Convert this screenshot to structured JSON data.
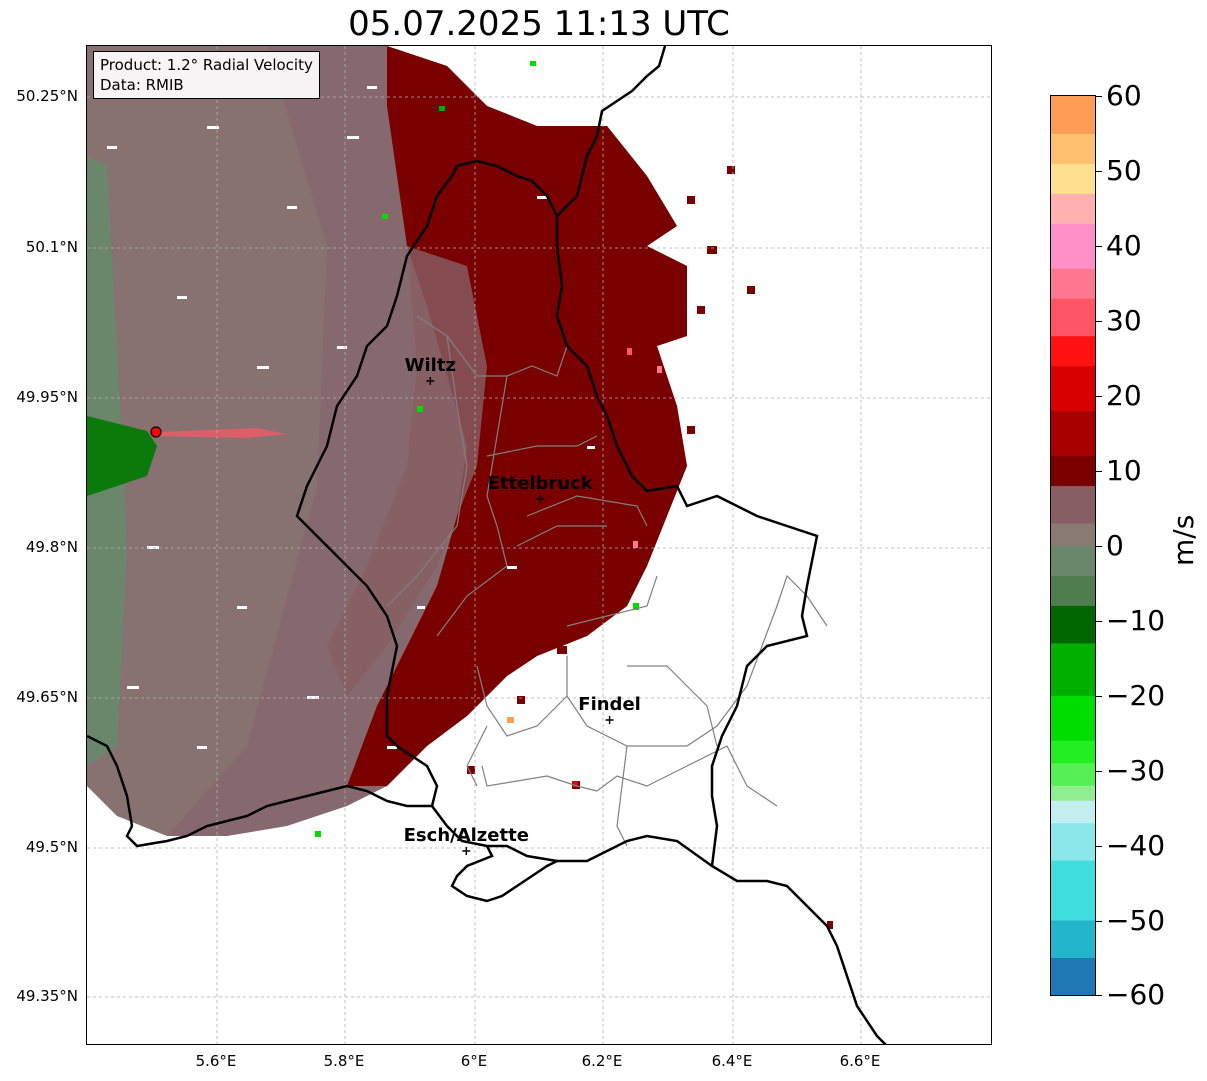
{
  "title": "05.07.2025 11:13 UTC",
  "info_box": {
    "product": "Product: 1.2° Radial Velocity",
    "source": "Data: RMIB"
  },
  "latitude_labels": [
    "50.25°N",
    "50.1°N",
    "49.95°N",
    "49.8°N",
    "49.65°N",
    "49.5°N",
    "49.35°N"
  ],
  "longitude_labels": [
    "5.6°E",
    "5.8°E",
    "6°E",
    "6.2°E",
    "6.4°E",
    "6.6°E"
  ],
  "cities": [
    {
      "name": "Wiltz",
      "lat": 49.966,
      "lon": 5.932
    },
    {
      "name": "Ettelbruck",
      "lat": 49.848,
      "lon": 6.103
    },
    {
      "name": "Findel",
      "lat": 49.627,
      "lon": 6.211
    },
    {
      "name": "Esch/Alzette",
      "lat": 49.496,
      "lon": 5.988
    }
  ],
  "radar_site": {
    "lat": 49.915,
    "lon": 5.505
  },
  "colorbar": {
    "unit": "m/s",
    "min": -60,
    "max": 60,
    "tick_labels": [
      "60",
      "50",
      "40",
      "30",
      "20",
      "10",
      "0",
      "−10",
      "−20",
      "−30",
      "−40",
      "−50",
      "−60"
    ],
    "palette": [
      {
        "from": -60,
        "to": -55,
        "color": "#1f77b4"
      },
      {
        "from": -55,
        "to": -50,
        "color": "#22b5cc"
      },
      {
        "from": -50,
        "to": -42,
        "color": "#40dede"
      },
      {
        "from": -42,
        "to": -37,
        "color": "#8ae8e8"
      },
      {
        "from": -37,
        "to": -34,
        "color": "#c2f0f0"
      },
      {
        "from": -34,
        "to": -32,
        "color": "#90ee90"
      },
      {
        "from": -32,
        "to": -29,
        "color": "#55f055"
      },
      {
        "from": -29,
        "to": -26,
        "color": "#22ee22"
      },
      {
        "from": -26,
        "to": -20,
        "color": "#00dd00"
      },
      {
        "from": -20,
        "to": -13,
        "color": "#00b000"
      },
      {
        "from": -13,
        "to": -8,
        "color": "#006600"
      },
      {
        "from": -8,
        "to": -4,
        "color": "#4f7d4f"
      },
      {
        "from": -4,
        "to": 0,
        "color": "#6b876b"
      },
      {
        "from": 0,
        "to": 3,
        "color": "#8a7a74"
      },
      {
        "from": 3,
        "to": 8,
        "color": "#875e64"
      },
      {
        "from": 8,
        "to": 12,
        "color": "#7a0000"
      },
      {
        "from": 12,
        "to": 18,
        "color": "#a80000"
      },
      {
        "from": 18,
        "to": 24,
        "color": "#d80000"
      },
      {
        "from": 24,
        "to": 28,
        "color": "#ff1111"
      },
      {
        "from": 28,
        "to": 33,
        "color": "#ff5566"
      },
      {
        "from": 33,
        "to": 37,
        "color": "#ff7790"
      },
      {
        "from": 37,
        "to": 43,
        "color": "#ff90c8"
      },
      {
        "from": 43,
        "to": 47,
        "color": "#ffb0b0"
      },
      {
        "from": 47,
        "to": 51,
        "color": "#ffe090"
      },
      {
        "from": 51,
        "to": 55,
        "color": "#ffc070"
      },
      {
        "from": 55,
        "to": 60,
        "color": "#ff9c55"
      }
    ]
  },
  "colors": {
    "grid": "#b0b0b0",
    "border_country": "#000000",
    "border_canton": "#808080",
    "radar_site": "#ff0000"
  }
}
